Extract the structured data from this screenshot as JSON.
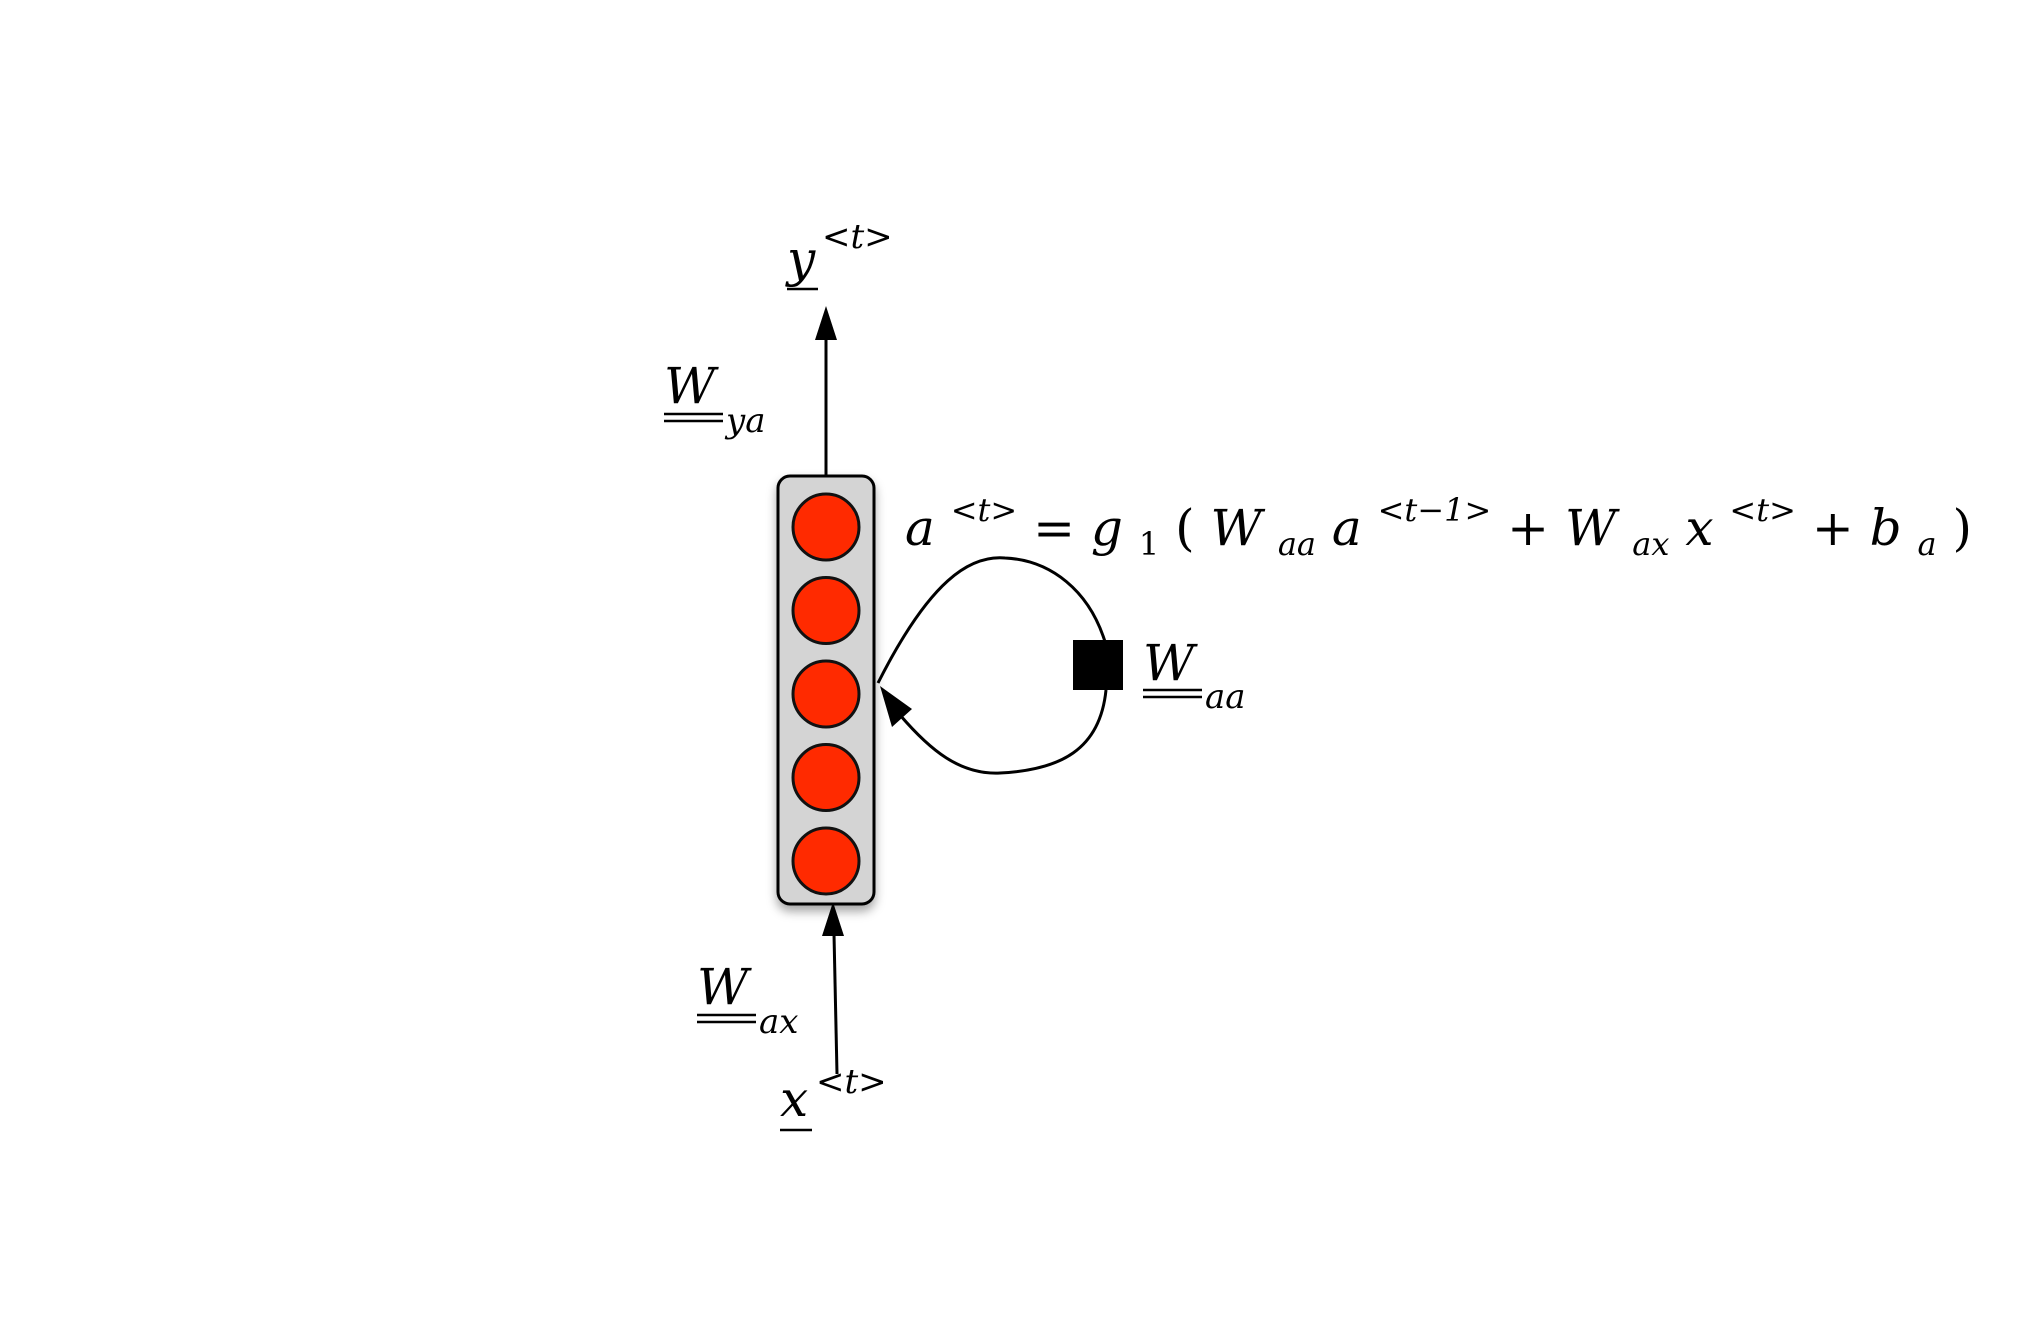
{
  "colors": {
    "background": "#ffffff",
    "neuron_fill": "#ff2a00",
    "neuron_stroke": "#111111",
    "layer_fill": "#d4d4d4",
    "stroke": "#000000"
  },
  "layer": {
    "neuron_count": 5
  },
  "labels": {
    "output": {
      "base": "y",
      "sup": "<t>"
    },
    "input": {
      "base": "x",
      "sup": "<t>"
    },
    "w_ya": {
      "base": "W",
      "sub": "ya"
    },
    "w_ax": {
      "base": "W",
      "sub": "ax"
    },
    "w_aa": {
      "base": "W",
      "sub": "aa"
    }
  },
  "equation": {
    "a": "a",
    "a_sup": "<t>",
    "eq": " = ",
    "g": "g",
    "g_sub": "1",
    "open": "(",
    "w1": "W",
    "w1_sub": "aa",
    "a_prev": "a",
    "a_prev_sup": "<t−1>",
    "plus1": " + ",
    "w2": "W",
    "w2_sub": "ax",
    "x": "x",
    "x_sup": "<t>",
    "plus2": " + ",
    "b": "b",
    "b_sub": "a",
    "close": ")"
  }
}
